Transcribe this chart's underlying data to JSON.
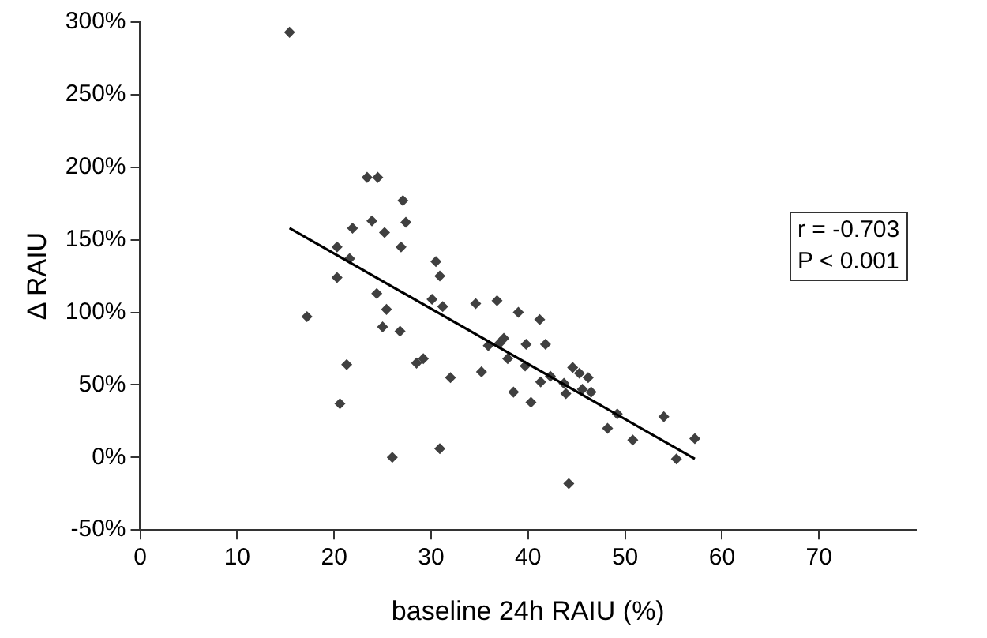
{
  "chart_data": {
    "type": "scatter",
    "xlabel": "baseline 24h RAIU (%)",
    "ylabel": "Δ RAIU",
    "xlim": [
      0,
      80
    ],
    "xticks": [
      0,
      10,
      20,
      30,
      40,
      50,
      60,
      70
    ],
    "ylim": [
      -50,
      300
    ],
    "yticks": [
      {
        "value": -50,
        "label": "-50%"
      },
      {
        "value": 0,
        "label": "0%"
      },
      {
        "value": 50,
        "label": "50%"
      },
      {
        "value": 100,
        "label": "100%"
      },
      {
        "value": 150,
        "label": "150%"
      },
      {
        "value": 200,
        "label": "200%"
      },
      {
        "value": 250,
        "label": "250%"
      },
      {
        "value": 300,
        "label": "300%"
      }
    ],
    "grid": false,
    "legend": false,
    "marker": "diamond",
    "annotations": [
      "r = -0.703",
      "P < 0.001"
    ],
    "series": [
      {
        "color": "#404040",
        "x": [
          15.4,
          23.4,
          24.5,
          27.1,
          21.9,
          23.9,
          25.2,
          27.4,
          20.3,
          21.6,
          26.9,
          20.3,
          30.5,
          30.9,
          24.4,
          30.1,
          31.2,
          34.6,
          36.8,
          17.2,
          25.4,
          25.0,
          26.8,
          21.3,
          28.5,
          29.2,
          32.0,
          35.2,
          35.9,
          20.6,
          26.0,
          30.9,
          39.0,
          41.2,
          37.1,
          37.5,
          39.8,
          41.8,
          37.9,
          39.7,
          41.3,
          38.5,
          40.3,
          42.3,
          43.7,
          43.9,
          44.6,
          45.3,
          46.2,
          45.6,
          46.5,
          49.2,
          48.2,
          50.8,
          54.0,
          55.3,
          57.2,
          44.2
        ],
        "values": [
          293,
          193,
          193,
          177,
          158,
          163,
          155,
          162,
          145,
          137,
          145,
          124,
          135,
          125,
          113,
          109,
          104,
          106,
          108,
          97,
          102,
          90,
          87,
          64,
          65,
          68,
          55,
          59,
          77,
          37,
          0,
          6,
          100,
          95,
          79,
          82,
          78,
          78,
          68,
          63,
          52,
          45,
          38,
          56,
          51,
          44,
          62,
          58,
          55,
          47,
          45,
          30,
          20,
          12,
          28,
          -1,
          13,
          -18
        ]
      },
      {
        "type": "line",
        "color": "#000000",
        "marker": "none",
        "line_style": "solid",
        "x": [
          15.4,
          57.2
        ],
        "values": [
          158,
          -1
        ]
      }
    ]
  }
}
